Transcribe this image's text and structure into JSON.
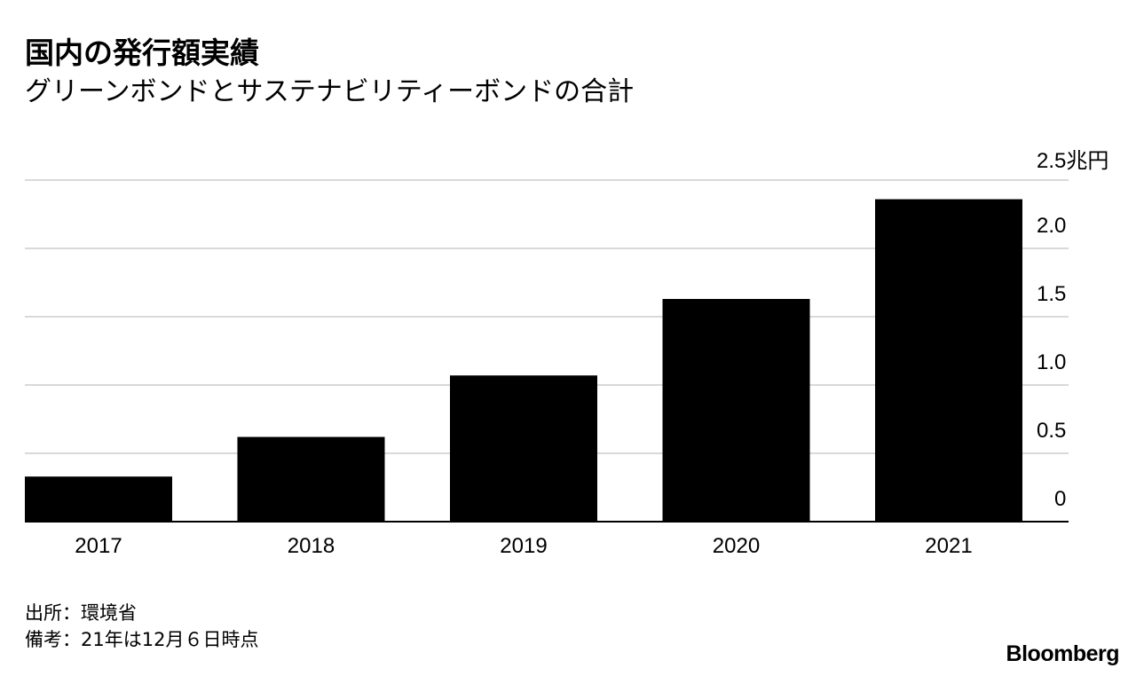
{
  "chart_data": {
    "type": "bar",
    "title": "国内の発行額実績",
    "subtitle": "グリーンボンドとサステナビリティーボンドの合計",
    "categories": [
      "2017",
      "2018",
      "2019",
      "2020",
      "2021"
    ],
    "values": [
      0.33,
      0.62,
      1.07,
      1.63,
      2.36
    ],
    "ylim": [
      0,
      2.5
    ],
    "y_ticks": [
      {
        "value": 0,
        "label": "0"
      },
      {
        "value": 0.5,
        "label": "0.5"
      },
      {
        "value": 1.0,
        "label": "1.0"
      },
      {
        "value": 1.5,
        "label": "1.5"
      },
      {
        "value": 2.0,
        "label": "2.0"
      },
      {
        "value": 2.5,
        "label": "2.5"
      }
    ],
    "y_unit": "兆円",
    "grid": true,
    "axis_side": "right",
    "bar_color": "#000000",
    "grid_color": "#d9d9d9"
  },
  "footer": {
    "source": "出所：環境省",
    "note": "備考：21年は12月６日時点",
    "brand": "Bloomberg"
  }
}
